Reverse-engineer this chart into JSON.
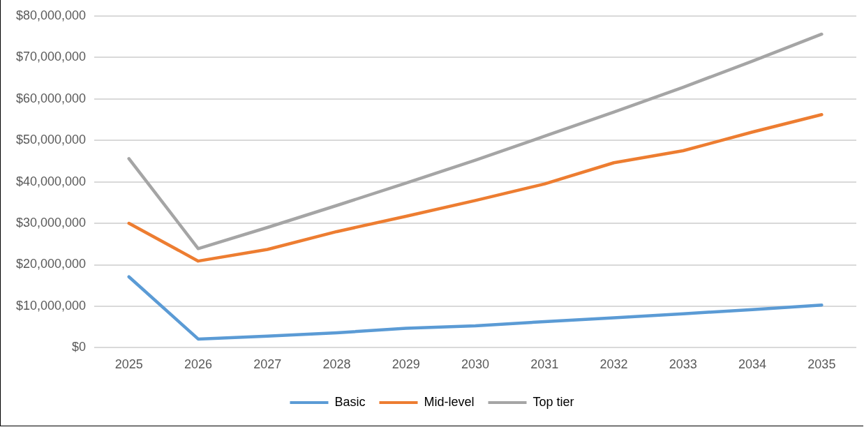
{
  "chart_data": {
    "type": "line",
    "categories": [
      "2025",
      "2026",
      "2027",
      "2028",
      "2029",
      "2030",
      "2031",
      "2032",
      "2033",
      "2034",
      "2035"
    ],
    "series": [
      {
        "name": "Basic",
        "color": "#5b9bd5",
        "values": [
          17100000,
          2100000,
          2800000,
          3600000,
          4700000,
          5300000,
          6300000,
          7200000,
          8200000,
          9200000,
          10300000
        ]
      },
      {
        "name": "Mid-level",
        "color": "#ed7d31",
        "values": [
          30000000,
          20900000,
          23700000,
          28000000,
          31700000,
          35500000,
          39500000,
          44600000,
          47500000,
          52000000,
          56200000
        ]
      },
      {
        "name": "Top tier",
        "color": "#a5a5a5",
        "values": [
          45600000,
          23900000,
          29000000,
          34300000,
          39700000,
          45200000,
          51000000,
          56800000,
          62800000,
          69100000,
          75600000
        ]
      }
    ],
    "ylim": [
      0,
      80000000
    ],
    "yticks": [
      {
        "value": 0,
        "label": "$0"
      },
      {
        "value": 10000000,
        "label": "$10,000,000"
      },
      {
        "value": 20000000,
        "label": "$20,000,000"
      },
      {
        "value": 30000000,
        "label": "$30,000,000"
      },
      {
        "value": 40000000,
        "label": "$40,000,000"
      },
      {
        "value": 50000000,
        "label": "$50,000,000"
      },
      {
        "value": 60000000,
        "label": "$60,000,000"
      },
      {
        "value": 70000000,
        "label": "$70,000,000"
      },
      {
        "value": 80000000,
        "label": "$80,000,000"
      }
    ],
    "grid": "y",
    "legend": "bottom",
    "marker": "none",
    "line_style": "solid"
  }
}
